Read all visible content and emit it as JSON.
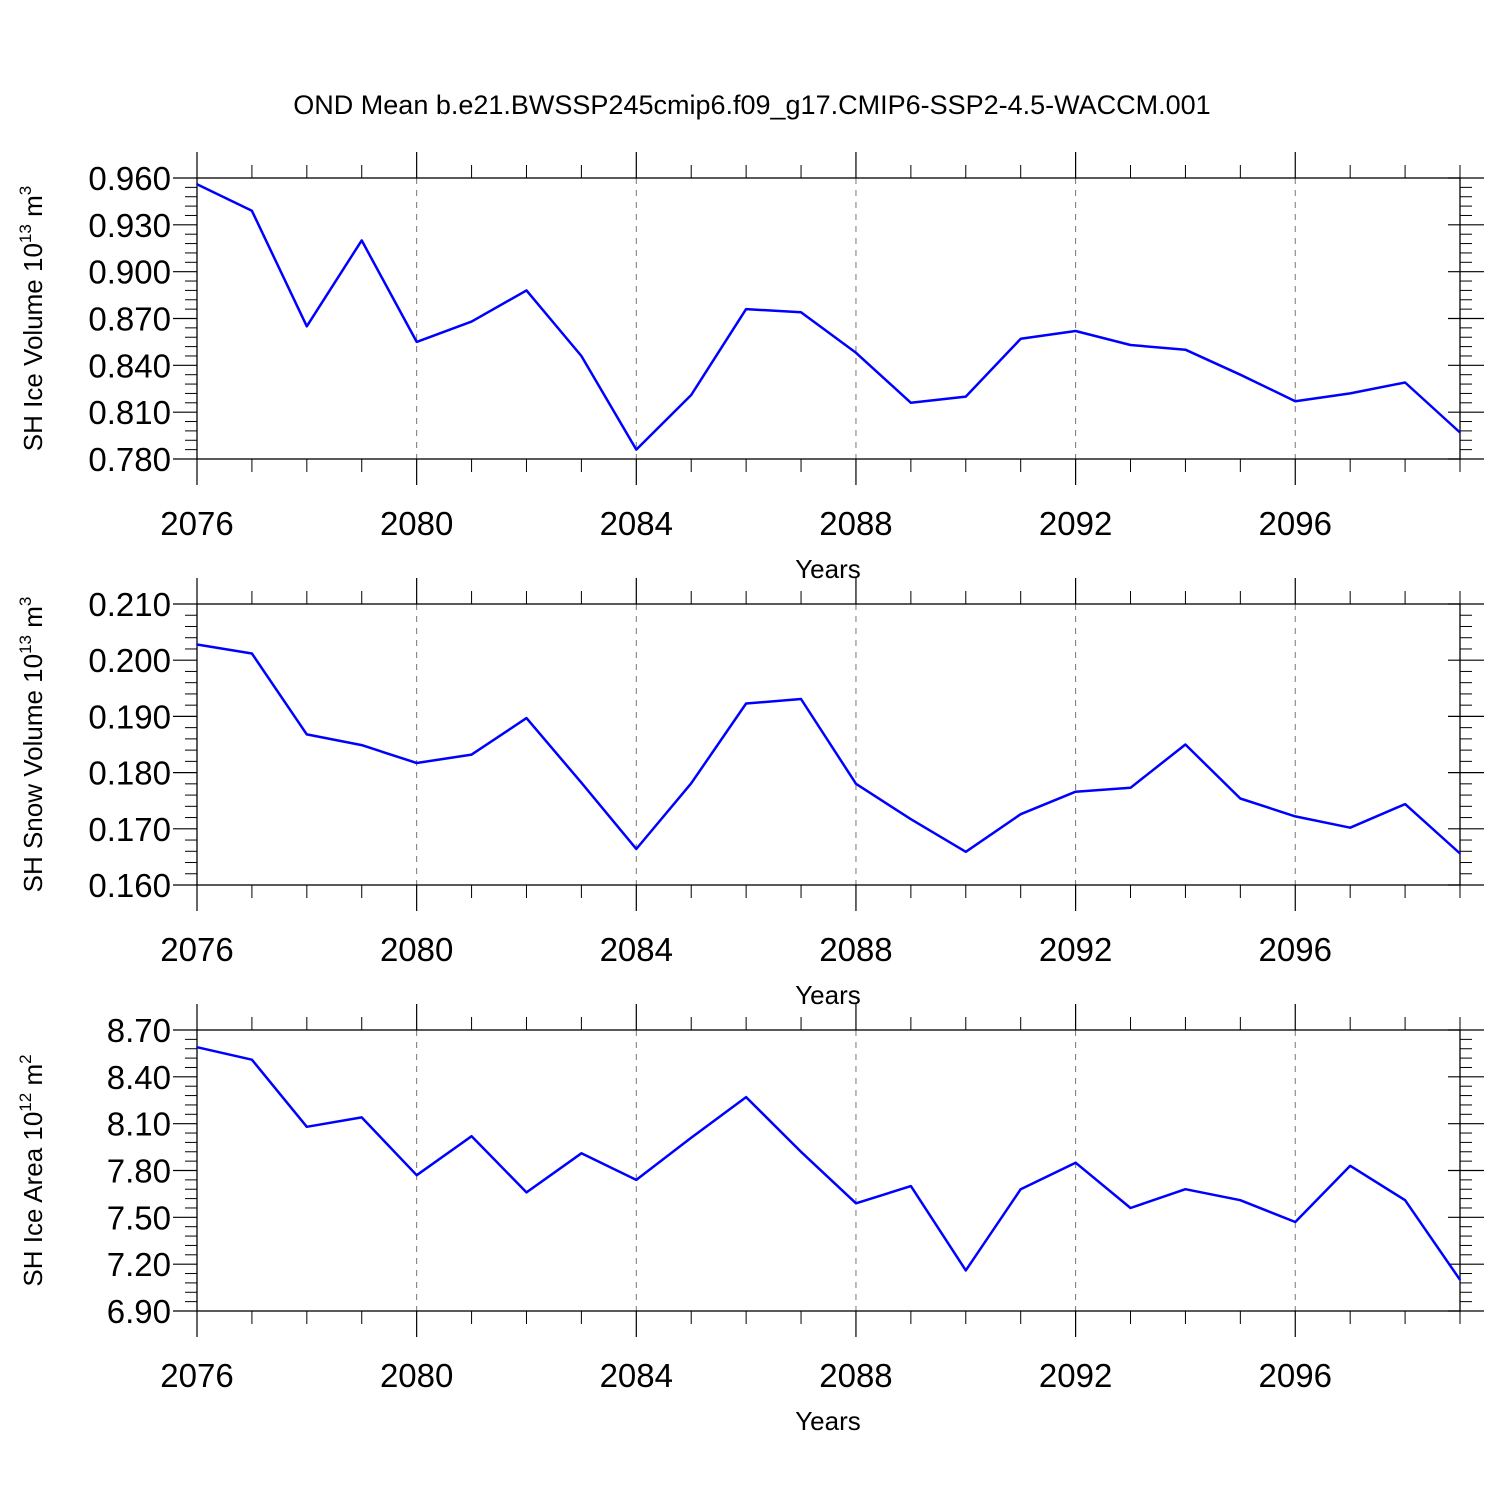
{
  "title": "OND Mean b.e21.BWSSP245cmip6.f09_g17.CMIP6-SSP2-4.5-WACCM.001",
  "line_color": "#0000ff",
  "chart_data": [
    {
      "type": "line",
      "ylabel": "SH Ice Volume 10",
      "ylabel_exponent": "13",
      "ylabel_unit": " m",
      "ylabel_unit_exponent": "3",
      "xlabel": "Years",
      "xlim": [
        2076,
        2099
      ],
      "ylim": [
        0.78,
        0.96
      ],
      "x_ticks": [
        "2076",
        "2080",
        "2084",
        "2088",
        "2092",
        "2096"
      ],
      "y_ticks": [
        "0.780",
        "0.810",
        "0.840",
        "0.870",
        "0.900",
        "0.930",
        "0.960"
      ],
      "x": [
        2076,
        2077,
        2078,
        2079,
        2080,
        2081,
        2082,
        2083,
        2084,
        2085,
        2086,
        2087,
        2088,
        2089,
        2090,
        2091,
        2092,
        2093,
        2094,
        2095,
        2096,
        2097,
        2098,
        2099
      ],
      "series": [
        {
          "values": [
            0.956,
            0.939,
            0.865,
            0.92,
            0.855,
            0.868,
            0.888,
            0.846,
            0.786,
            0.821,
            0.876,
            0.874,
            0.848,
            0.816,
            0.82,
            0.857,
            0.862,
            0.853,
            0.85,
            0.834,
            0.817,
            0.822,
            0.829,
            0.797
          ]
        }
      ]
    },
    {
      "type": "line",
      "ylabel": "SH Snow Volume 10",
      "ylabel_exponent": "13",
      "ylabel_unit": " m",
      "ylabel_unit_exponent": "3",
      "xlabel": "Years",
      "xlim": [
        2076,
        2099
      ],
      "ylim": [
        0.16,
        0.21
      ],
      "x_ticks": [
        "2076",
        "2080",
        "2084",
        "2088",
        "2092",
        "2096"
      ],
      "y_ticks": [
        "0.160",
        "0.170",
        "0.180",
        "0.190",
        "0.200",
        "0.210"
      ],
      "x": [
        2076,
        2077,
        2078,
        2079,
        2080,
        2081,
        2082,
        2083,
        2084,
        2085,
        2086,
        2087,
        2088,
        2089,
        2090,
        2091,
        2092,
        2093,
        2094,
        2095,
        2096,
        2097,
        2098,
        2099
      ],
      "series": [
        {
          "values": [
            0.2028,
            0.2012,
            0.1868,
            0.1849,
            0.1817,
            0.1832,
            0.1897,
            0.1782,
            0.1664,
            0.1781,
            0.1923,
            0.1931,
            0.178,
            0.1717,
            0.1659,
            0.1726,
            0.1766,
            0.1773,
            0.185,
            0.1754,
            0.1722,
            0.1702,
            0.1744,
            0.1656
          ]
        }
      ]
    },
    {
      "type": "line",
      "ylabel": "SH Ice Area 10",
      "ylabel_exponent": "12",
      "ylabel_unit": " m",
      "ylabel_unit_exponent": "2",
      "xlabel": "Years",
      "xlim": [
        2076,
        2099
      ],
      "ylim": [
        6.9,
        8.7
      ],
      "x_ticks": [
        "2076",
        "2080",
        "2084",
        "2088",
        "2092",
        "2096"
      ],
      "y_ticks": [
        "6.90",
        "7.20",
        "7.50",
        "7.80",
        "8.10",
        "8.40",
        "8.70"
      ],
      "x": [
        2076,
        2077,
        2078,
        2079,
        2080,
        2081,
        2082,
        2083,
        2084,
        2085,
        2086,
        2087,
        2088,
        2089,
        2090,
        2091,
        2092,
        2093,
        2094,
        2095,
        2096,
        2097,
        2098,
        2099
      ],
      "series": [
        {
          "values": [
            8.59,
            8.51,
            8.08,
            8.14,
            7.77,
            8.02,
            7.66,
            7.91,
            7.74,
            8.01,
            8.27,
            7.92,
            7.59,
            7.7,
            7.16,
            7.68,
            7.85,
            7.56,
            7.68,
            7.61,
            7.47,
            7.83,
            7.61,
            7.1
          ]
        }
      ]
    }
  ]
}
